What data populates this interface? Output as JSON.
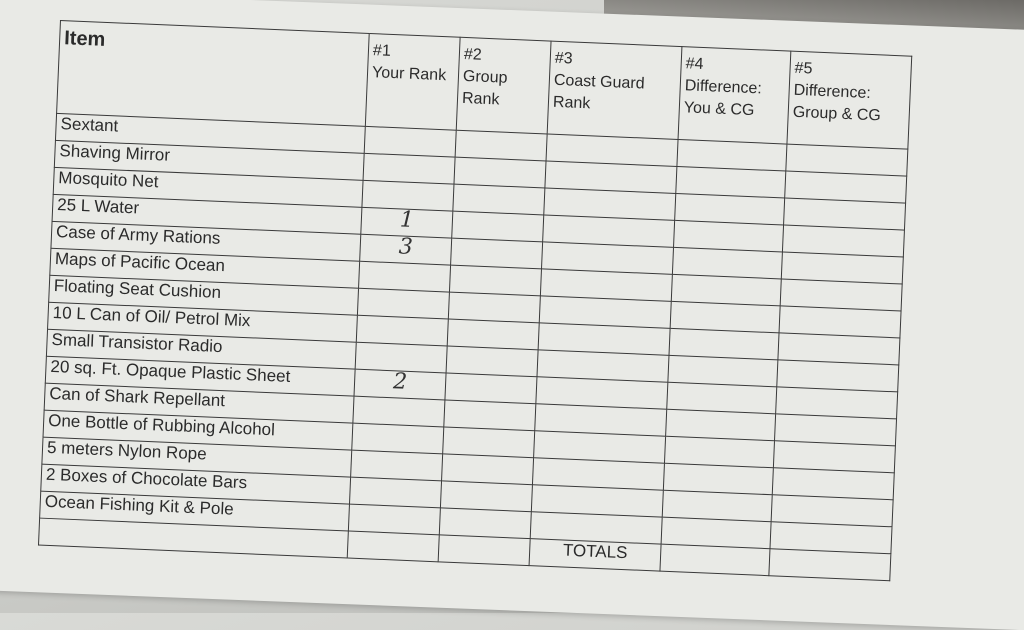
{
  "header": {
    "item": "Item",
    "columns": [
      {
        "num": "#1",
        "label": "Your Rank"
      },
      {
        "num": "#2",
        "label": "Group Rank"
      },
      {
        "num": "#3",
        "label": "Coast Guard Rank"
      },
      {
        "num": "#4",
        "label": "Difference: You & CG"
      },
      {
        "num": "#5",
        "label": "Difference: Group & CG"
      }
    ]
  },
  "rows": [
    {
      "item": "Sextant",
      "your_rank": ""
    },
    {
      "item": "Shaving Mirror",
      "your_rank": ""
    },
    {
      "item": "Mosquito Net",
      "your_rank": ""
    },
    {
      "item": "25 L Water",
      "your_rank": "1"
    },
    {
      "item": "Case of Army Rations",
      "your_rank": "3"
    },
    {
      "item": "Maps of Pacific Ocean",
      "your_rank": ""
    },
    {
      "item": "Floating Seat Cushion",
      "your_rank": ""
    },
    {
      "item": "10 L Can of Oil/ Petrol Mix",
      "your_rank": ""
    },
    {
      "item": "Small Transistor Radio",
      "your_rank": ""
    },
    {
      "item": "20 sq. Ft. Opaque Plastic Sheet",
      "your_rank": "2"
    },
    {
      "item": "Can of Shark Repellant",
      "your_rank": ""
    },
    {
      "item": "One Bottle of Rubbing Alcohol",
      "your_rank": ""
    },
    {
      "item": "5 meters Nylon Rope",
      "your_rank": ""
    },
    {
      "item": "2 Boxes of Chocolate Bars",
      "your_rank": ""
    },
    {
      "item": "Ocean Fishing Kit & Pole",
      "your_rank": ""
    }
  ],
  "totals_label": "TOTALS"
}
